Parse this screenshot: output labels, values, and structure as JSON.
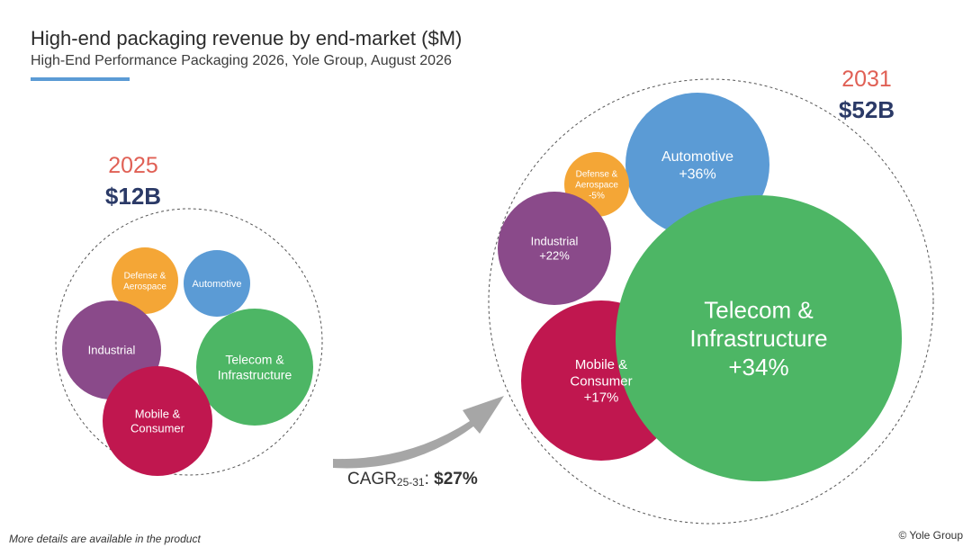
{
  "header": {
    "title": "High-end packaging revenue by end-market ($M)",
    "subtitle": "High-End Performance Packaging 2026, Yole Group, August 2026"
  },
  "colors": {
    "accent_bar": "#5B9BD5",
    "year_label": "#E06055",
    "total_label": "#2B3A67",
    "arrow": "#A6A6A6"
  },
  "chart_data": {
    "type": "bubble",
    "title": "High-end packaging revenue by end-market ($M)",
    "subtitle": "High-End Performance Packaging 2026, Yole Group, August 2026",
    "cagr": {
      "label": "CAGR",
      "period": "25-31",
      "value": "$27%"
    },
    "groups": [
      {
        "year": "2025",
        "total": "$12B",
        "segments": [
          {
            "name": "Defense & Aerospace",
            "lines": [
              "Defense &",
              "Aerospace"
            ],
            "color": "#F4A636"
          },
          {
            "name": "Automotive",
            "lines": [
              "Automotive"
            ],
            "color": "#5B9BD5"
          },
          {
            "name": "Industrial",
            "lines": [
              "Industrial"
            ],
            "color": "#8A4A8A"
          },
          {
            "name": "Telecom & Infrastructure",
            "lines": [
              "Telecom &",
              "Infrastructure"
            ],
            "color": "#4DB665"
          },
          {
            "name": "Mobile & Consumer",
            "lines": [
              "Mobile &",
              "Consumer"
            ],
            "color": "#C0174F"
          }
        ]
      },
      {
        "year": "2031",
        "total": "$52B",
        "segments": [
          {
            "name": "Automotive",
            "lines": [
              "Automotive",
              "+36%"
            ],
            "growth": "+36%",
            "color": "#5B9BD5"
          },
          {
            "name": "Defense & Aerospace",
            "lines": [
              "Defense &",
              "Aerospace",
              "-5%"
            ],
            "growth": "-5%",
            "color": "#F4A636"
          },
          {
            "name": "Industrial",
            "lines": [
              "Industrial",
              "+22%"
            ],
            "growth": "+22%",
            "color": "#8A4A8A"
          },
          {
            "name": "Mobile & Consumer",
            "lines": [
              "Mobile &",
              "Consumer",
              "+17%"
            ],
            "growth": "+17%",
            "color": "#C0174F"
          },
          {
            "name": "Telecom & Infrastructure",
            "lines": [
              "Telecom &",
              "Infrastructure",
              "+34%"
            ],
            "growth": "+34%",
            "color": "#4DB665"
          }
        ]
      }
    ]
  },
  "footer": {
    "note": "More details are available in the product",
    "copyright": "© Yole Group"
  }
}
